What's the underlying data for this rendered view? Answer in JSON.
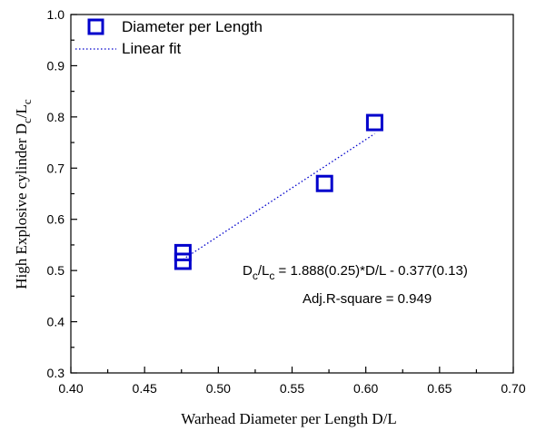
{
  "chart_data": {
    "type": "scatter",
    "xlabel": "Warhead Diameter per Length D/L",
    "ylabel": {
      "main": "High Explosive cylinder D",
      "sub1": "c",
      "mid": "/L",
      "sub2": "c"
    },
    "xlim": [
      0.4,
      0.7
    ],
    "ylim": [
      0.3,
      1.0
    ],
    "x_ticks": [
      "0.40",
      "0.45",
      "0.50",
      "0.55",
      "0.60",
      "0.65",
      "0.70"
    ],
    "y_ticks": [
      "0.3",
      "0.4",
      "0.5",
      "0.6",
      "0.7",
      "0.8",
      "0.9",
      "1.0"
    ],
    "grid": false,
    "legend_position": "top-left",
    "series": [
      {
        "name": "Diameter per Length",
        "marker": "open-square",
        "color": "#0000cc",
        "points": [
          {
            "x": 0.476,
            "y": 0.535
          },
          {
            "x": 0.476,
            "y": 0.518
          },
          {
            "x": 0.572,
            "y": 0.67
          },
          {
            "x": 0.606,
            "y": 0.789
          }
        ]
      },
      {
        "name": "Linear fit",
        "style": "dotted-line",
        "color": "#0000cc",
        "slope": 1.888,
        "intercept": -0.377,
        "x_range": [
          0.476,
          0.606
        ]
      }
    ],
    "annotations": {
      "equation": {
        "main": "D",
        "sub1": "c",
        "mid": "/L",
        "sub2": "c",
        "rest": " = 1.888(0.25)*D/L - 0.377(0.13)"
      },
      "r_square": "Adj.R-square = 0.949"
    }
  }
}
